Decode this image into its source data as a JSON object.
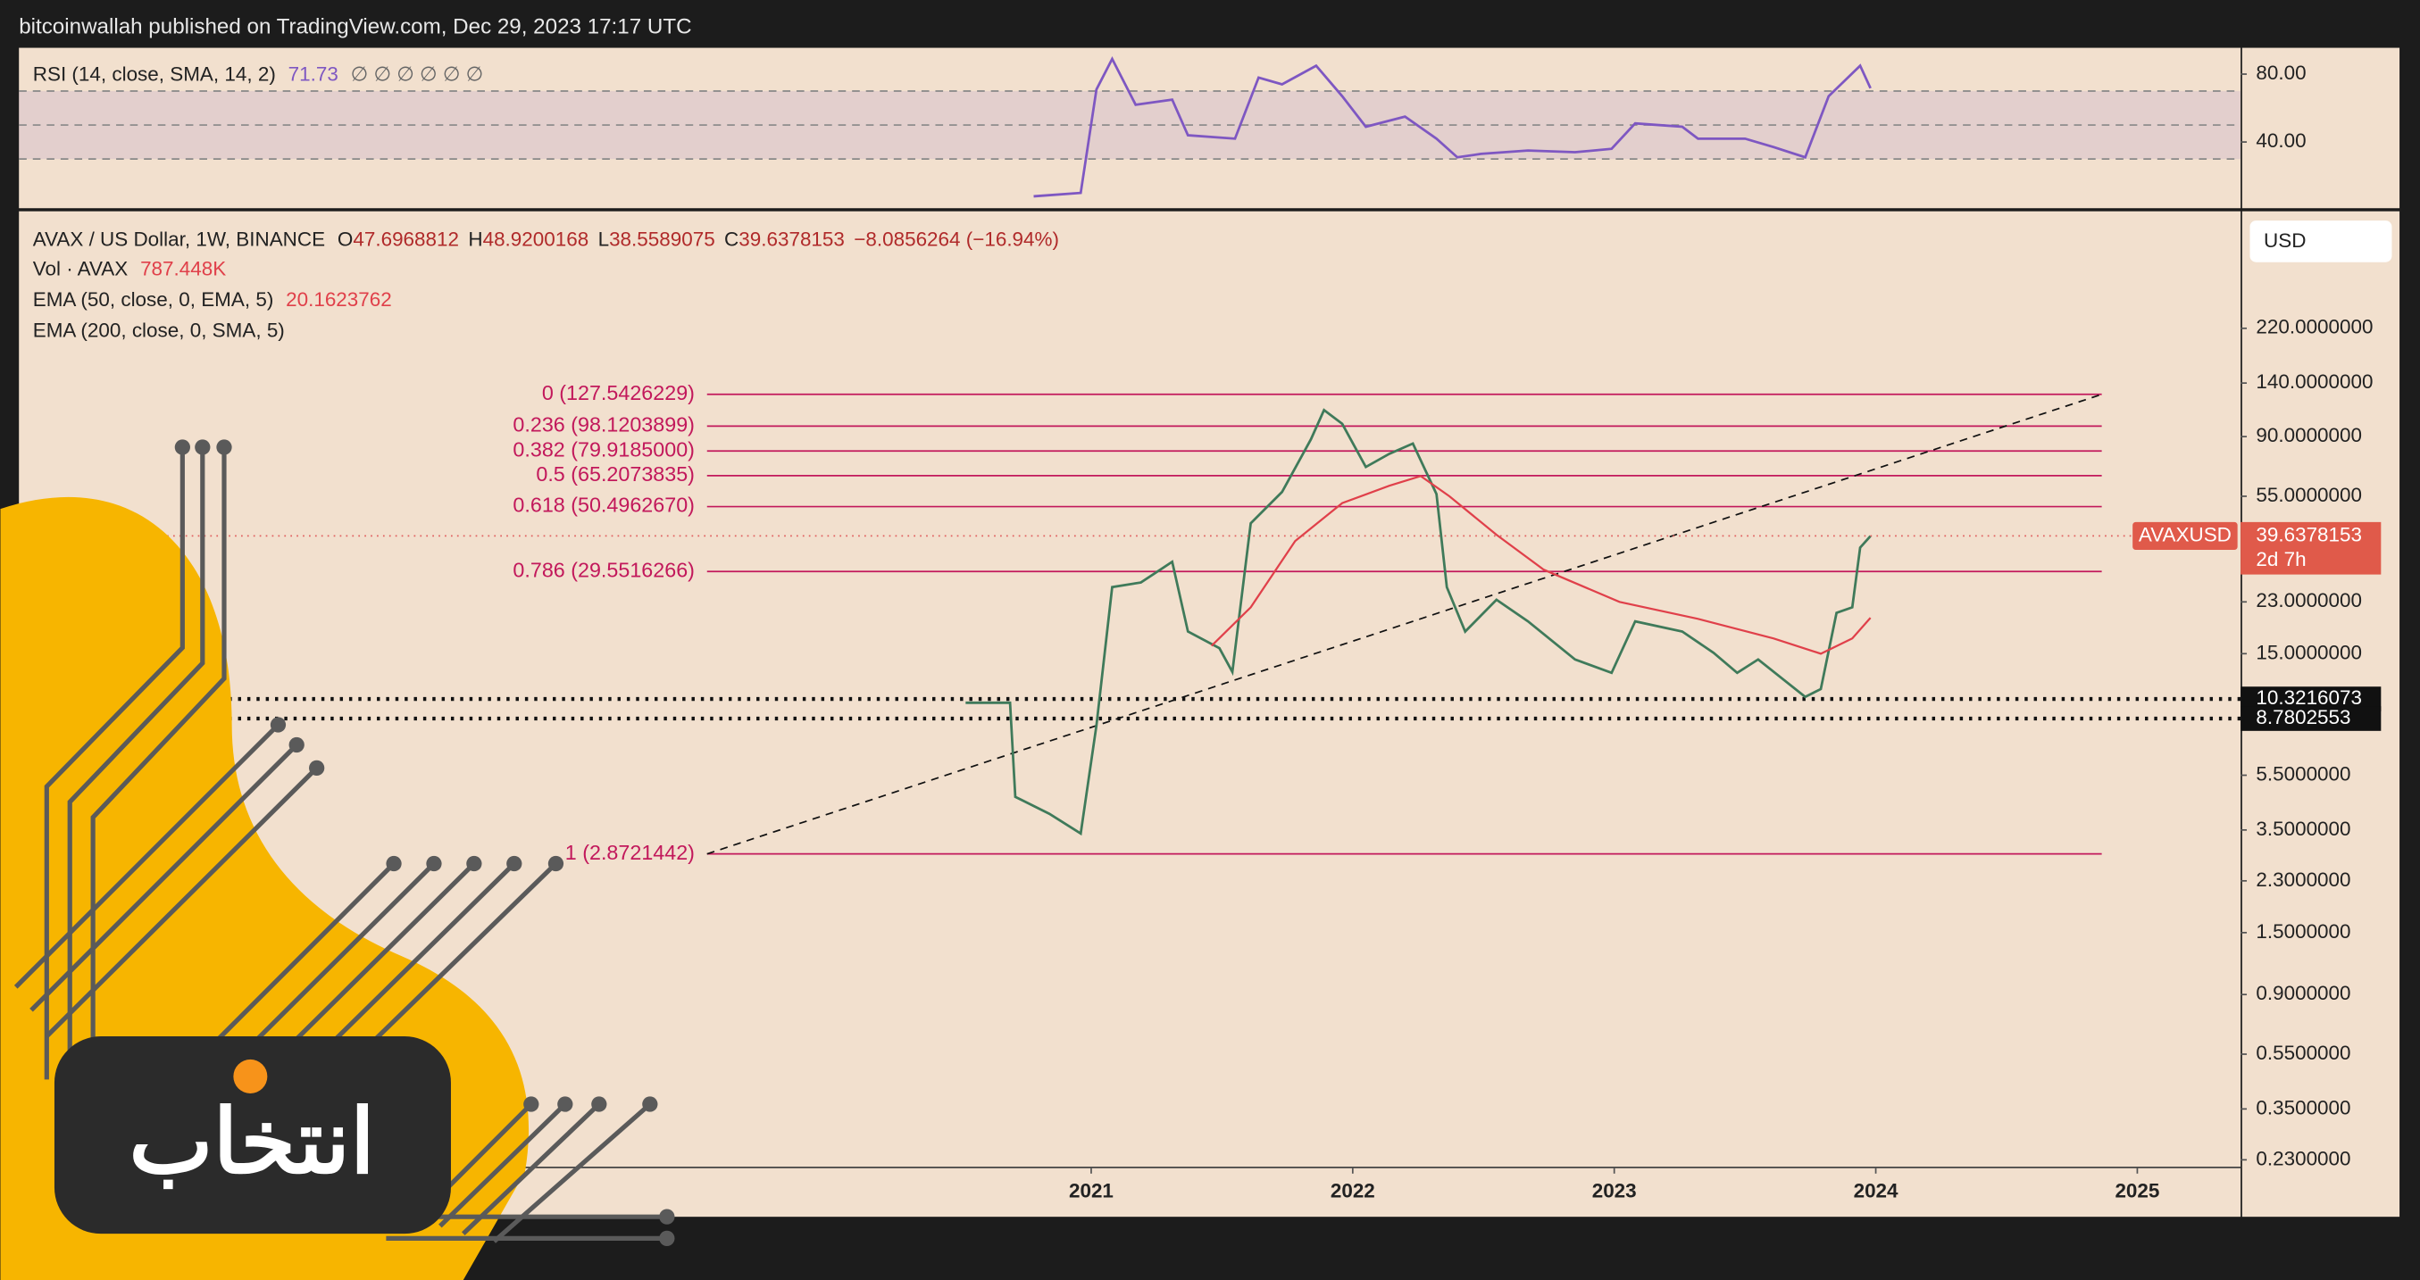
{
  "header": {
    "publisher": "bitcoinwallah published on TradingView.com, Dec 29, 2023 17:17 UTC"
  },
  "watermark": "انتخاب",
  "currency_button": "USD",
  "chart_data": [
    {
      "type": "line",
      "title": "RSI (14, close, SMA, 14, 2)",
      "title_value": "71.73",
      "title_extra": "∅ ∅ ∅ ∅ ∅ ∅",
      "xlim": [
        2016.9,
        2025.395
      ],
      "ylim": [
        1,
        95.5
      ],
      "yticks": [
        {
          "value": 80,
          "label": "80.00"
        },
        {
          "value": 40,
          "label": "40.00"
        }
      ],
      "levels": [
        70,
        50,
        30
      ],
      "series": [
        {
          "color": "#7e57c2",
          "x": [
            2020.78,
            2020.96,
            2021.02,
            2021.08,
            2021.17,
            2021.31,
            2021.37,
            2021.55,
            2021.64,
            2021.73,
            2021.86,
            2021.96,
            2022.05,
            2022.2,
            2022.32,
            2022.4,
            2022.49,
            2022.67,
            2022.85,
            2022.99,
            2023.08,
            2023.26,
            2023.32,
            2023.5,
            2023.61,
            2023.73,
            2023.82,
            2023.94,
            2023.98
          ],
          "values": [
            8,
            10,
            71,
            89,
            62,
            65,
            44,
            42,
            78,
            74,
            85,
            67,
            49,
            55,
            42,
            31,
            33,
            35,
            34,
            36,
            51,
            49,
            42,
            42,
            37,
            31,
            67,
            85,
            71.73
          ]
        }
      ]
    },
    {
      "type": "line",
      "log_scale": true,
      "legend": {
        "symbol": "AVAX / US Dollar, 1W, BINANCE",
        "o_label": "O",
        "o": "47.6968812",
        "h_label": "H",
        "h": "48.9200168",
        "l_label": "L",
        "l": "38.5589075",
        "c_label": "C",
        "c": "39.6378153",
        "change": "−8.0856264 (−16.94%)",
        "vol": "Vol · AVAX",
        "vol_value": "787.448K",
        "ema50": "EMA (50, close, 0, EMA, 5)",
        "ema50_value": "20.1623762",
        "ema200": "EMA (200, close, 0, SMA, 5)"
      },
      "xlim": [
        2016.9,
        2025.395
      ],
      "xticks": [
        2021,
        2022,
        2023,
        2024,
        2025
      ],
      "ylim": [
        0.216,
        578
      ],
      "yticks": [
        {
          "value": 220,
          "label": "220.0000000"
        },
        {
          "value": 140,
          "label": "140.0000000"
        },
        {
          "value": 90,
          "label": "90.0000000"
        },
        {
          "value": 55,
          "label": "55.0000000"
        },
        {
          "value": 23,
          "label": "23.0000000"
        },
        {
          "value": 15,
          "label": "15.0000000"
        },
        {
          "value": 5.5,
          "label": "5.5000000"
        },
        {
          "value": 3.5,
          "label": "3.5000000"
        },
        {
          "value": 2.3,
          "label": "2.3000000"
        },
        {
          "value": 1.5,
          "label": "1.5000000"
        },
        {
          "value": 0.9,
          "label": "0.9000000"
        },
        {
          "value": 0.55,
          "label": "0.5500000"
        },
        {
          "value": 0.35,
          "label": "0.3500000"
        },
        {
          "value": 0.23,
          "label": "0.2300000"
        }
      ],
      "fib_levels": [
        {
          "value": 127.5426229,
          "label": "0 (127.5426229)"
        },
        {
          "value": 98.1203899,
          "label": "0.236 (98.1203899)"
        },
        {
          "value": 79.9185,
          "label": "0.382 (79.9185000)"
        },
        {
          "value": 65.2073835,
          "label": "0.5 (65.2073835)"
        },
        {
          "value": 50.496267,
          "label": "0.618 (50.4962670)"
        },
        {
          "value": 29.5516266,
          "label": "0.786 (29.5516266)"
        },
        {
          "value": 2.8721442,
          "label": "1 (2.8721442)"
        }
      ],
      "support_levels": [
        {
          "value": 10.3216073,
          "label": "10.3216073"
        },
        {
          "value": 8.7802553,
          "label": "8.7802553"
        }
      ],
      "last_price": {
        "symbol": "AVAXUSD",
        "value": 39.6378153,
        "label": "39.6378153",
        "countdown": "2d 7h"
      },
      "series": [
        {
          "color": "#3f7a5a",
          "x": [
            2020.52,
            2020.69,
            2020.71,
            2020.84,
            2020.96,
            2021.02,
            2021.08,
            2021.19,
            2021.31,
            2021.37,
            2021.49,
            2021.54,
            2021.61,
            2021.73,
            2021.84,
            2021.89,
            2021.96,
            2022.05,
            2022.14,
            2022.23,
            2022.32,
            2022.36,
            2022.43,
            2022.55,
            2022.67,
            2022.85,
            2022.99,
            2023.08,
            2023.26,
            2023.38,
            2023.47,
            2023.55,
            2023.73,
            2023.79,
            2023.85,
            2023.91,
            2023.94,
            2023.98
          ],
          "values": [
            10,
            10,
            4.6,
            4,
            3.4,
            8.3,
            26,
            27,
            32,
            18,
            15.7,
            12.9,
            44,
            57,
            88,
            112,
            100,
            70,
            78,
            85,
            56,
            26,
            18,
            23.4,
            19.6,
            14.3,
            12.8,
            19.6,
            18,
            15.1,
            12.8,
            14.3,
            10.5,
            11.2,
            21,
            22,
            36,
            39.6
          ]
        },
        {
          "color": "#e0404a",
          "x": [
            2021.46,
            2021.61,
            2021.78,
            2021.96,
            2022.14,
            2022.26,
            2022.37,
            2022.55,
            2022.73,
            2023.02,
            2023.32,
            2023.61,
            2023.79,
            2023.91,
            2023.98
          ],
          "values": [
            16,
            22,
            38,
            52,
            60,
            65,
            55,
            40,
            30,
            23,
            20,
            17,
            15,
            17,
            20.16
          ]
        }
      ]
    }
  ]
}
